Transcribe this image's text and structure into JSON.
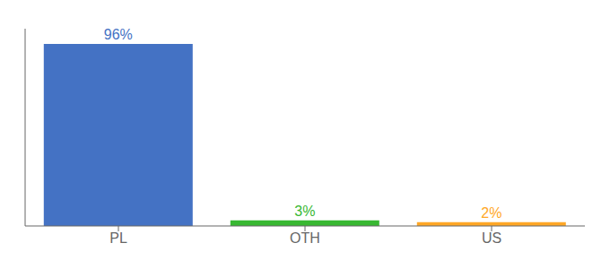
{
  "chart_data": {
    "type": "bar",
    "categories": [
      "PL",
      "OTH",
      "US"
    ],
    "values": [
      96,
      3,
      2
    ],
    "value_labels": [
      "96%",
      "3%",
      "2%"
    ],
    "colors": [
      "#4472c4",
      "#38b832",
      "#ffa726"
    ],
    "ylim": [
      0,
      104
    ],
    "data_labels": true,
    "tick_labels": "x",
    "grid": false
  }
}
